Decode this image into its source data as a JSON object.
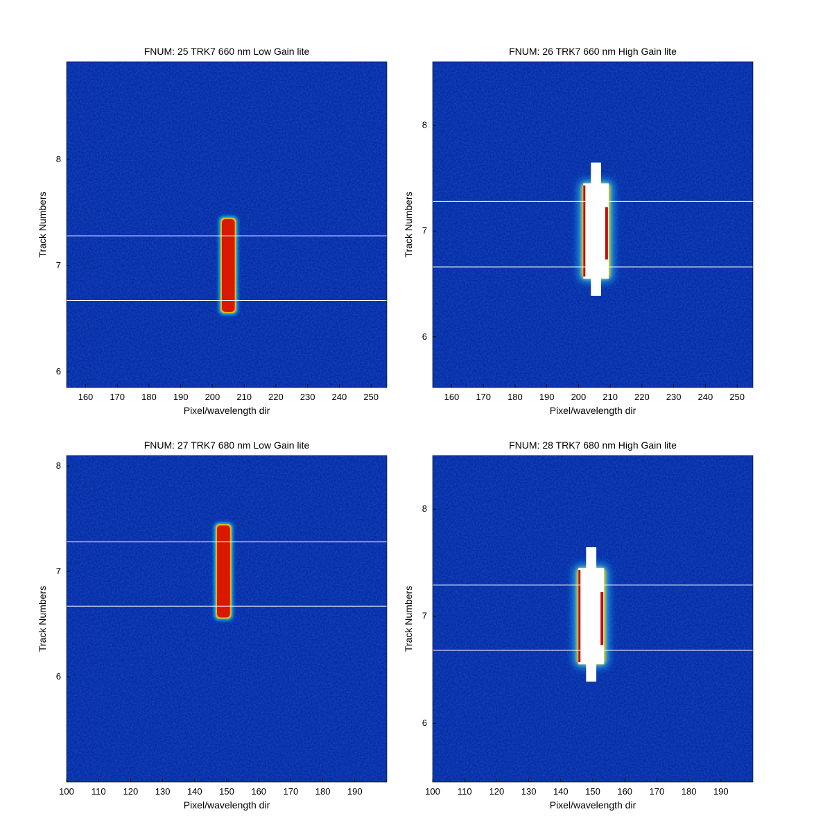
{
  "chart_data": [
    {
      "type": "heatmap",
      "title": "FNUM: 25 TRK7 660 nm Low Gain lite",
      "xlabel": "Pixel/wavelength dir",
      "ylabel": "Track Numbers",
      "xlim": [
        154,
        255
      ],
      "ylim": [
        5.85,
        8.92
      ],
      "xticks": [
        160,
        170,
        180,
        190,
        200,
        210,
        220,
        230,
        240,
        250
      ],
      "yticks": [
        6,
        7,
        8
      ],
      "hlines": [
        6.67,
        7.28
      ],
      "background": "#00249e",
      "spot": {
        "x_center": 205,
        "x_width": 4.5,
        "y_range": [
          6.55,
          7.45
        ],
        "saturated": false
      }
    },
    {
      "type": "heatmap",
      "title": "FNUM: 26 TRK7 660 nm High Gain lite",
      "xlabel": "Pixel/wavelength dir",
      "ylabel": "Track Numbers",
      "xlim": [
        154,
        255
      ],
      "ylim": [
        5.52,
        8.6
      ],
      "xticks": [
        160,
        170,
        180,
        190,
        200,
        210,
        220,
        230,
        240,
        250
      ],
      "yticks": [
        6,
        7,
        8
      ],
      "hlines": [
        6.66,
        7.28
      ],
      "background": "#00249e",
      "spot": {
        "x_center": 205.5,
        "x_width": 8,
        "y_range": [
          6.55,
          7.45
        ],
        "saturated": true
      }
    },
    {
      "type": "heatmap",
      "title": "FNUM: 27 TRK7 680 nm Low Gain lite",
      "xlabel": "Pixel/wavelength dir",
      "ylabel": "Track Numbers",
      "xlim": [
        100,
        200
      ],
      "ylim": [
        5.0,
        8.1
      ],
      "xticks": [
        100,
        110,
        120,
        130,
        140,
        150,
        160,
        170,
        180,
        190
      ],
      "yticks": [
        6,
        7,
        8
      ],
      "hlines": [
        6.67,
        7.28
      ],
      "background": "#00249e",
      "spot": {
        "x_center": 149,
        "x_width": 4.5,
        "y_range": [
          6.55,
          7.45
        ],
        "saturated": false
      }
    },
    {
      "type": "heatmap",
      "title": "FNUM: 28 TRK7 680 nm High Gain lite",
      "xlabel": "Pixel/wavelength dir",
      "ylabel": "Track Numbers",
      "xlim": [
        100,
        200
      ],
      "ylim": [
        5.45,
        8.5
      ],
      "xticks": [
        100,
        110,
        120,
        130,
        140,
        150,
        160,
        170,
        180,
        190
      ],
      "yticks": [
        6,
        7,
        8
      ],
      "hlines": [
        6.68,
        7.29
      ],
      "background": "#00249e",
      "spot": {
        "x_center": 149.5,
        "x_width": 8,
        "y_range": [
          6.55,
          7.45
        ],
        "saturated": true
      }
    }
  ]
}
